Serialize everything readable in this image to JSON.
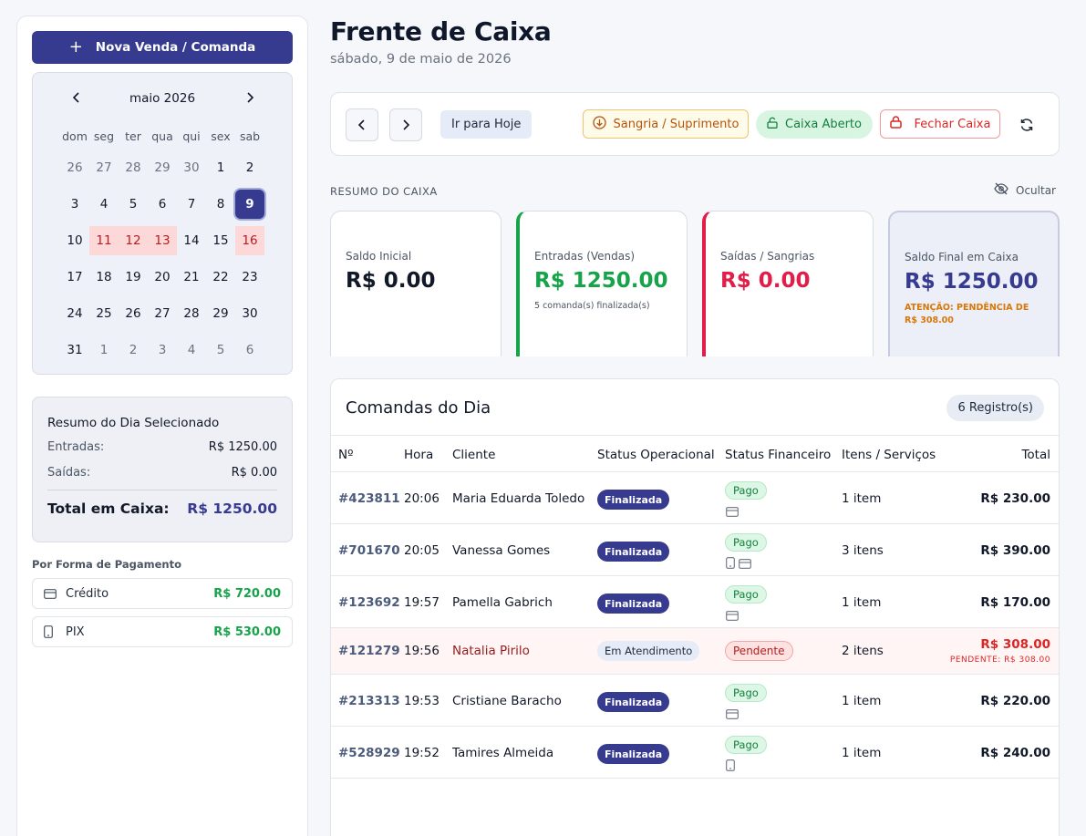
{
  "sidebar": {
    "new_sale_label": "Nova Venda / Comanda",
    "calendar": {
      "title": "maio 2026",
      "weekdays": [
        "dom",
        "seg",
        "ter",
        "qua",
        "qui",
        "sex",
        "sab"
      ],
      "days": [
        {
          "d": "26",
          "muted": true
        },
        {
          "d": "27",
          "muted": true
        },
        {
          "d": "28",
          "muted": true
        },
        {
          "d": "29",
          "muted": true
        },
        {
          "d": "30",
          "muted": true
        },
        {
          "d": "1"
        },
        {
          "d": "2"
        },
        {
          "d": "3"
        },
        {
          "d": "4"
        },
        {
          "d": "5"
        },
        {
          "d": "6"
        },
        {
          "d": "7"
        },
        {
          "d": "8"
        },
        {
          "d": "9",
          "selected": true
        },
        {
          "d": "10"
        },
        {
          "d": "11",
          "pending": true
        },
        {
          "d": "12",
          "pending": true
        },
        {
          "d": "13",
          "pending": true
        },
        {
          "d": "14"
        },
        {
          "d": "15"
        },
        {
          "d": "16",
          "pending": true
        },
        {
          "d": "17"
        },
        {
          "d": "18"
        },
        {
          "d": "19"
        },
        {
          "d": "20"
        },
        {
          "d": "21"
        },
        {
          "d": "22"
        },
        {
          "d": "23"
        },
        {
          "d": "24"
        },
        {
          "d": "25"
        },
        {
          "d": "26"
        },
        {
          "d": "27"
        },
        {
          "d": "28"
        },
        {
          "d": "29"
        },
        {
          "d": "30"
        },
        {
          "d": "31"
        },
        {
          "d": "1",
          "muted": true
        },
        {
          "d": "2",
          "muted": true
        },
        {
          "d": "3",
          "muted": true
        },
        {
          "d": "4",
          "muted": true
        },
        {
          "d": "5",
          "muted": true
        },
        {
          "d": "6",
          "muted": true
        }
      ]
    },
    "day_summary": {
      "title": "Resumo do Dia Selecionado",
      "entries_label": "Entradas:",
      "entries_value": "R$ 1250.00",
      "exits_label": "Saídas:",
      "exits_value": "R$ 0.00",
      "total_label": "Total em Caixa:",
      "total_value": "R$ 1250.00"
    },
    "payments_title": "Por Forma de Pagamento",
    "payments": [
      {
        "name": "Crédito",
        "amount": "R$ 720.00",
        "icon": "credit-card-icon"
      },
      {
        "name": "PIX",
        "amount": "R$ 530.00",
        "icon": "phone-icon"
      }
    ]
  },
  "header": {
    "title": "Frente de Caixa",
    "date": "sábado, 9 de maio de 2026"
  },
  "toolbar": {
    "today_label": "Ir para Hoje",
    "sangria_label": "Sangria / Suprimento",
    "open_label": "Caixa Aberto",
    "close_label": "Fechar Caixa"
  },
  "summary": {
    "section_label": "RESUMO DO CAIXA",
    "hide_label": "Ocultar",
    "cards": {
      "initial": {
        "label": "Saldo Inicial",
        "value": "R$ 0.00"
      },
      "entries": {
        "label": "Entradas (Vendas)",
        "value": "R$ 1250.00",
        "sub": "5 comanda(s) finalizada(s)"
      },
      "exits": {
        "label": "Saídas / Sangrias",
        "value": "R$ 0.00"
      },
      "final": {
        "label": "Saldo Final em Caixa",
        "value": "R$ 1250.00",
        "warning": "ATENÇÃO: PENDÊNCIA DE R$ 308.00"
      }
    }
  },
  "orders": {
    "title": "Comandas do Dia",
    "count": "6 Registro(s)",
    "columns": [
      "Nº",
      "Hora",
      "Cliente",
      "Status Operacional",
      "Status Financeiro",
      "Itens / Serviços",
      "Total"
    ],
    "rows": [
      {
        "num": "#423811",
        "time": "20:06",
        "client": "Maria Eduarda Toledo",
        "op_status": "Finalizada",
        "fin_status": "Pago",
        "pay_icons": [
          "credit-card-icon"
        ],
        "items": "1 item",
        "total": "R$ 230.00"
      },
      {
        "num": "#701670",
        "time": "20:05",
        "client": "Vanessa Gomes",
        "op_status": "Finalizada",
        "fin_status": "Pago",
        "pay_icons": [
          "phone-icon",
          "credit-card-icon"
        ],
        "items": "3 itens",
        "total": "R$ 390.00"
      },
      {
        "num": "#123692",
        "time": "19:57",
        "client": "Pamella Gabrich",
        "op_status": "Finalizada",
        "fin_status": "Pago",
        "pay_icons": [
          "credit-card-icon"
        ],
        "items": "1 item",
        "total": "R$ 170.00"
      },
      {
        "num": "#121279",
        "time": "19:56",
        "client": "Natalia Pirilo",
        "op_status": "Em Atendimento",
        "fin_status": "Pendente",
        "pay_icons": [],
        "items": "2 itens",
        "total": "R$ 308.00",
        "pending_note": "PENDENTE: R$ 308.00"
      },
      {
        "num": "#213313",
        "time": "19:53",
        "client": "Cristiane Baracho",
        "op_status": "Finalizada",
        "fin_status": "Pago",
        "pay_icons": [
          "credit-card-icon"
        ],
        "items": "1 item",
        "total": "R$ 220.00"
      },
      {
        "num": "#528929",
        "time": "19:52",
        "client": "Tamires Almeida",
        "op_status": "Finalizada",
        "fin_status": "Pago",
        "pay_icons": [
          "phone-icon"
        ],
        "items": "1 item",
        "total": "R$ 240.00"
      }
    ]
  },
  "colors": {
    "primary": "#363b8f",
    "success": "#16a34a",
    "danger": "#dc2626",
    "warning": "#d97706"
  }
}
